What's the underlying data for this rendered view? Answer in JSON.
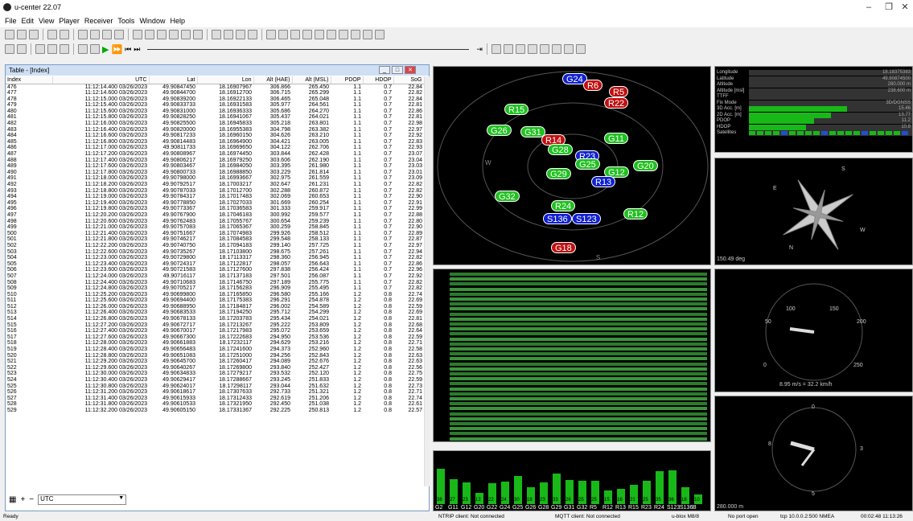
{
  "app": {
    "title": "u-center 22.07"
  },
  "menu": [
    "File",
    "Edit",
    "View",
    "Player",
    "Receiver",
    "Tools",
    "Window",
    "Help"
  ],
  "table": {
    "title": "Table - [Index]",
    "columns": [
      "Index",
      "UTC",
      "Lat",
      "Lon",
      "Alt (HAE)",
      "Alt (MSL)",
      "PDOP",
      "HDOP",
      "SoG"
    ],
    "rows": [
      [
        "476",
        "11:12:14.400 03/26/2023",
        "49.90847450",
        "18.16907967",
        "306.866",
        "265.450",
        "1.1",
        "0.7",
        "22.84"
      ],
      [
        "477",
        "11:12:14.600 03/26/2023",
        "49.90844700",
        "18.16912700",
        "306.715",
        "265.299",
        "1.1",
        "0.7",
        "22.82"
      ],
      [
        "478",
        "11:12:15.000 03/26/2023",
        "49.90839200",
        "18.16922133",
        "306.465",
        "265.048",
        "1.1",
        "0.7",
        "22.84"
      ],
      [
        "479",
        "11:12:15.400 03/26/2023",
        "49.90833733",
        "18.16931583",
        "305.977",
        "264.561",
        "1.1",
        "0.7",
        "22.81"
      ],
      [
        "480",
        "11:12:15.600 03/26/2023",
        "49.90831000",
        "18.16936333",
        "305.686",
        "264.270",
        "1.1",
        "0.7",
        "22.86"
      ],
      [
        "481",
        "11:12:15.800 03/26/2023",
        "49.90828250",
        "18.16941067",
        "305.437",
        "264.021",
        "1.1",
        "0.7",
        "22.81"
      ],
      [
        "482",
        "11:12:16.000 03/26/2023",
        "49.90825500",
        "18.16945833",
        "305.218",
        "263.801",
        "1.1",
        "0.7",
        "22.98"
      ],
      [
        "483",
        "11:12:16.400 03/26/2023",
        "49.90820000",
        "18.16955383",
        "304.798",
        "263.382",
        "1.1",
        "0.7",
        "22.97"
      ],
      [
        "484",
        "11:12:16.600 03/26/2023",
        "49.90817233",
        "18.16960150",
        "304.626",
        "263.210",
        "1.1",
        "0.7",
        "22.92"
      ],
      [
        "485",
        "11:12:16.800 03/26/2023",
        "49.90814483",
        "18.16964900",
        "304.421",
        "263.005",
        "1.1",
        "0.7",
        "22.83"
      ],
      [
        "486",
        "11:12:17.000 03/26/2023",
        "49.90811733",
        "18.16969650",
        "304.122",
        "262.706",
        "1.1",
        "0.7",
        "22.93"
      ],
      [
        "487",
        "11:12:17.200 03/26/2023",
        "49.90808967",
        "18.16974450",
        "303.844",
        "262.428",
        "1.1",
        "0.7",
        "23.07"
      ],
      [
        "488",
        "11:12:17.400 03/26/2023",
        "49.90806217",
        "18.16979250",
        "303.606",
        "262.190",
        "1.1",
        "0.7",
        "23.04"
      ],
      [
        "489",
        "11:12:17.600 03/26/2023",
        "49.90803467",
        "18.16984050",
        "303.395",
        "261.980",
        "1.1",
        "0.7",
        "23.03"
      ],
      [
        "490",
        "11:12:17.800 03/26/2023",
        "49.90800733",
        "18.16988850",
        "303.229",
        "261.814",
        "1.1",
        "0.7",
        "23.01"
      ],
      [
        "491",
        "11:12:18.000 03/26/2023",
        "49.90798000",
        "18.16993667",
        "302.975",
        "261.559",
        "1.1",
        "0.7",
        "23.09"
      ],
      [
        "492",
        "11:12:18.200 03/26/2023",
        "49.90792517",
        "18.17003217",
        "302.647",
        "261.231",
        "1.1",
        "0.7",
        "22.82"
      ],
      [
        "493",
        "11:12:18.800 03/26/2023",
        "49.90787033",
        "18.17012700",
        "302.288",
        "260.872",
        "1.1",
        "0.7",
        "22.82"
      ],
      [
        "494",
        "11:12:19.000 03/26/2023",
        "49.90784317",
        "18.17017483",
        "302.069",
        "260.653",
        "1.1",
        "0.7",
        "22.90"
      ],
      [
        "495",
        "11:12:19.400 03/26/2023",
        "49.90778850",
        "18.17027033",
        "301.669",
        "260.254",
        "1.1",
        "0.7",
        "22.91"
      ],
      [
        "496",
        "11:12:19.800 03/26/2023",
        "49.90773367",
        "18.17036583",
        "301.333",
        "259.917",
        "1.1",
        "0.7",
        "22.99"
      ],
      [
        "497",
        "11:12:20.200 03/26/2023",
        "49.90767900",
        "18.17046183",
        "300.992",
        "259.577",
        "1.1",
        "0.7",
        "22.88"
      ],
      [
        "498",
        "11:12:20.600 03/26/2023",
        "49.90762483",
        "18.17055767",
        "300.654",
        "259.239",
        "1.1",
        "0.7",
        "22.80"
      ],
      [
        "499",
        "11:12:21.000 03/26/2023",
        "49.90757083",
        "18.17065367",
        "300.259",
        "258.845",
        "1.1",
        "0.7",
        "22.90"
      ],
      [
        "500",
        "11:12:21.400 03/26/2023",
        "49.90751667",
        "18.17074983",
        "299.926",
        "258.512",
        "1.1",
        "0.7",
        "22.89"
      ],
      [
        "501",
        "11:12:21.800 03/26/2023",
        "49.90746217",
        "18.17084583",
        "299.548",
        "258.133",
        "1.1",
        "0.7",
        "22.87"
      ],
      [
        "502",
        "11:12:22.200 03/26/2023",
        "49.90740750",
        "18.17094183",
        "299.140",
        "257.725",
        "1.1",
        "0.7",
        "22.97"
      ],
      [
        "503",
        "11:12:22.600 03/26/2023",
        "49.90735267",
        "18.17103800",
        "298.675",
        "257.261",
        "1.1",
        "0.7",
        "22.94"
      ],
      [
        "504",
        "11:12:23.000 03/26/2023",
        "49.90729800",
        "18.17113317",
        "298.360",
        "256.945",
        "1.1",
        "0.7",
        "22.82"
      ],
      [
        "505",
        "11:12:23.400 03/26/2023",
        "49.90724317",
        "18.17122817",
        "298.057",
        "256.643",
        "1.1",
        "0.7",
        "22.86"
      ],
      [
        "506",
        "11:12:23.600 03/26/2023",
        "49.90721583",
        "18.17127600",
        "297.838",
        "256.424",
        "1.1",
        "0.7",
        "22.96"
      ],
      [
        "507",
        "11:12:24.000 03/26/2023",
        "49.90716117",
        "18.17137183",
        "297.501",
        "256.087",
        "1.1",
        "0.7",
        "22.92"
      ],
      [
        "508",
        "11:12:24.400 03/26/2023",
        "49.90710683",
        "18.17146750",
        "297.189",
        "255.775",
        "1.1",
        "0.7",
        "22.82"
      ],
      [
        "509",
        "11:12:24.800 03/26/2023",
        "49.90705217",
        "18.17156283",
        "296.909",
        "255.495",
        "1.1",
        "0.7",
        "22.82"
      ],
      [
        "510",
        "11:12:25.200 03/26/2023",
        "49.90699800",
        "18.17165850",
        "296.580",
        "255.166",
        "1.2",
        "0.8",
        "22.74"
      ],
      [
        "511",
        "11:12:25.600 03/26/2023",
        "49.90694400",
        "18.17175383",
        "296.291",
        "254.878",
        "1.2",
        "0.8",
        "22.69"
      ],
      [
        "512",
        "11:12:26.000 03/26/2023",
        "49.90688950",
        "18.17184817",
        "296.002",
        "254.589",
        "1.2",
        "0.8",
        "22.59"
      ],
      [
        "513",
        "11:12:26.400 03/26/2023",
        "49.90683533",
        "18.17194250",
        "295.712",
        "254.299",
        "1.2",
        "0.8",
        "22.69"
      ],
      [
        "514",
        "11:12:26.800 03/26/2023",
        "49.90678133",
        "18.17203783",
        "295.434",
        "254.021",
        "1.2",
        "0.8",
        "22.81"
      ],
      [
        "515",
        "11:12:27.200 03/26/2023",
        "49.90672717",
        "18.17213267",
        "295.222",
        "253.809",
        "1.2",
        "0.8",
        "22.68"
      ],
      [
        "516",
        "11:12:27.400 03/26/2023",
        "49.90670017",
        "18.17217983",
        "295.072",
        "253.659",
        "1.2",
        "0.8",
        "22.64"
      ],
      [
        "517",
        "11:12:27.600 03/26/2023",
        "49.90667300",
        "18.17222683",
        "294.950",
        "253.536",
        "1.2",
        "0.8",
        "22.59"
      ],
      [
        "518",
        "11:12:28.000 03/26/2023",
        "49.90661883",
        "18.17232117",
        "294.629",
        "253.216",
        "1.2",
        "0.8",
        "22.71"
      ],
      [
        "519",
        "11:12:28.400 03/26/2023",
        "49.90656483",
        "18.17241600",
        "294.373",
        "252.960",
        "1.2",
        "0.8",
        "22.58"
      ],
      [
        "520",
        "11:12:28.800 03/26/2023",
        "49.90651083",
        "18.17251000",
        "294.256",
        "252.843",
        "1.2",
        "0.8",
        "22.63"
      ],
      [
        "521",
        "11:12:29.200 03/26/2023",
        "49.90645700",
        "18.17260417",
        "294.089",
        "252.676",
        "1.2",
        "0.8",
        "22.63"
      ],
      [
        "522",
        "11:12:29.600 03/26/2023",
        "49.90640267",
        "18.17269800",
        "293.840",
        "252.427",
        "1.2",
        "0.8",
        "22.56"
      ],
      [
        "523",
        "11:12:30.000 03/26/2023",
        "49.90634833",
        "18.17279217",
        "293.532",
        "252.120",
        "1.2",
        "0.8",
        "22.75"
      ],
      [
        "524",
        "11:12:30.400 03/26/2023",
        "49.90629417",
        "18.17288667",
        "293.245",
        "251.833",
        "1.2",
        "0.8",
        "22.59"
      ],
      [
        "525",
        "11:12:30.800 03/26/2023",
        "49.90624017",
        "18.17298117",
        "293.044",
        "251.632",
        "1.2",
        "0.8",
        "22.73"
      ],
      [
        "526",
        "11:12:31.200 03/26/2023",
        "49.90618617",
        "18.17307633",
        "292.733",
        "251.321",
        "1.2",
        "0.8",
        "22.71"
      ],
      [
        "527",
        "11:12:31.400 03/26/2023",
        "49.90615933",
        "18.17312433",
        "292.619",
        "251.206",
        "1.2",
        "0.8",
        "22.74"
      ],
      [
        "528",
        "11:12:31.800 03/26/2023",
        "49.90610533",
        "18.17321950",
        "292.450",
        "251.038",
        "1.2",
        "0.8",
        "22.61"
      ],
      [
        "529",
        "11:12:32.200 03/26/2023",
        "49.90605150",
        "18.17331367",
        "292.225",
        "250.813",
        "1.2",
        "0.8",
        "22.57"
      ]
    ],
    "filter_value": "UTC"
  },
  "sky": {
    "dirs": {
      "w": "W",
      "s": "S"
    },
    "sats": [
      {
        "id": "G24",
        "c": "b"
      },
      {
        "id": "R6",
        "c": "r"
      },
      {
        "id": "R5",
        "c": "r"
      },
      {
        "id": "R22",
        "c": "r"
      },
      {
        "id": "R15",
        "c": "g"
      },
      {
        "id": "G26",
        "c": "g"
      },
      {
        "id": "G31",
        "c": "g"
      },
      {
        "id": "R14",
        "c": "r"
      },
      {
        "id": "G11",
        "c": "g"
      },
      {
        "id": "G28",
        "c": "g"
      },
      {
        "id": "R23",
        "c": "b"
      },
      {
        "id": "G25",
        "c": "g"
      },
      {
        "id": "G12",
        "c": "g"
      },
      {
        "id": "G20",
        "c": "g"
      },
      {
        "id": "G29",
        "c": "g"
      },
      {
        "id": "R13",
        "c": "b"
      },
      {
        "id": "G32",
        "c": "g"
      },
      {
        "id": "R24",
        "c": "g"
      },
      {
        "id": "S136",
        "c": "b"
      },
      {
        "id": "S123",
        "c": "b"
      },
      {
        "id": "R12",
        "c": "g"
      },
      {
        "id": "G18",
        "c": "r"
      }
    ]
  },
  "data": {
    "rows": [
      {
        "label": "Longitude",
        "value": "18.18375383",
        "bar": 0
      },
      {
        "label": "Latitude",
        "value": "49.90874500",
        "bar": 0
      },
      {
        "label": "Altitude",
        "value": "280.000 m",
        "bar": 0
      },
      {
        "label": "Altitude [msl]",
        "value": "238.600 m",
        "bar": 0
      },
      {
        "label": "TTFF",
        "value": "",
        "bar": 0
      },
      {
        "label": "Fix Mode",
        "value": "3D/DGNSS",
        "bar": 0
      },
      {
        "label": "3D Acc. [m]",
        "value": "15.46",
        "bar": 0.6
      },
      {
        "label": "2D Acc. [m]",
        "value": "13.77",
        "bar": 0.5
      },
      {
        "label": "PDOP",
        "value": "11.2",
        "bar": 0.4
      },
      {
        "label": "HDOP",
        "value": "10.8",
        "bar": 0.35
      },
      {
        "label": "Satellites",
        "value": "",
        "bar": 0
      }
    ],
    "scale_left": "0"
  },
  "compass": {
    "heading": "150.49 deg",
    "n": "N",
    "s": "S",
    "e": "E",
    "w": "W"
  },
  "speed": {
    "readout": "8.95 m/s = 32.2 km/h",
    "ticks": [
      "0",
      "50",
      "100",
      "150",
      "200",
      "250"
    ]
  },
  "clock": {
    "readout": "280.000 m",
    "ticks": [
      "0",
      "3",
      "5",
      "8"
    ]
  },
  "cno": {
    "labels": [
      "G2",
      "G11",
      "G12",
      "G20",
      "G22",
      "G24",
      "G25",
      "G26",
      "G28",
      "G29",
      "G31",
      "G32",
      "R5",
      "R12",
      "R13",
      "R15",
      "R23",
      "R24",
      "S123",
      "S136",
      "B"
    ],
    "values": [
      38,
      27,
      23,
      12,
      22,
      24,
      30,
      18,
      23,
      33,
      26,
      25,
      25,
      15,
      16,
      21,
      25,
      35,
      36,
      18,
      10
    ],
    "axis": [
      "10",
      "20",
      "30",
      "40",
      "50"
    ]
  },
  "status": {
    "ready": "Ready",
    "ntrip": "NTRIP client: Not connected",
    "mqtt": "MQTT client: Not connected",
    "receiver": "u-blox M8/8",
    "port": "No port open",
    "conn": "tcp 10.0.0.2:500 NMEA",
    "time": "00:02:48 11:13:26"
  }
}
